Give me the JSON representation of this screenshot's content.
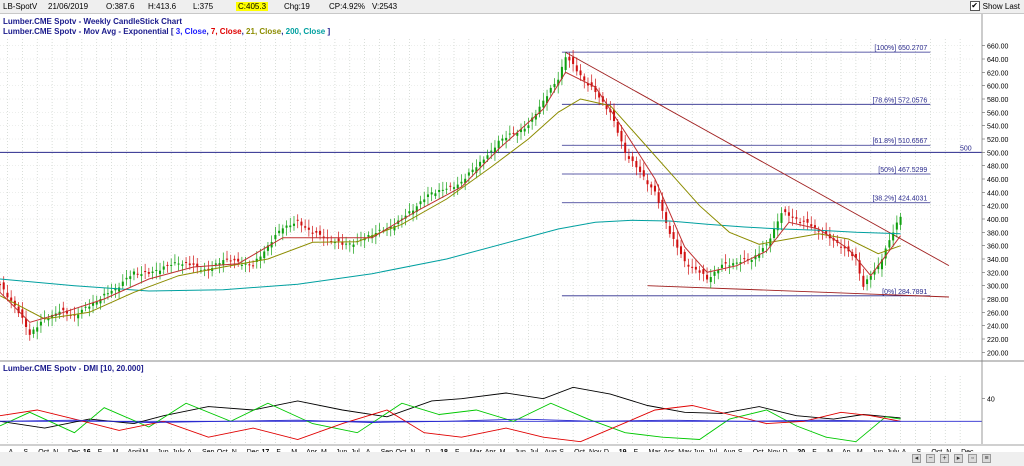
{
  "header": {
    "symbol": "LB-SpotV",
    "date": "21/06/2019",
    "open": "O:387.6",
    "high": "H:413.6",
    "low": "L:375",
    "close": "C:405.3",
    "change": "Chg:19",
    "change_pct": "CP:4.92%",
    "volume": "V:2543",
    "show_last_label": "Show Last",
    "show_last_checked": "✔"
  },
  "chart_data": [
    {
      "type": "candlestick",
      "title": "Lumber.CME Spotv - Weekly CandleStick Chart",
      "indicator_label": "Lumber.CME Spotv - Mov Avg - Exponential [",
      "ma_params": [
        {
          "text": "3, Close",
          "color": "#1a1aff"
        },
        {
          "text": "7, Close",
          "color": "#e00000"
        },
        {
          "text": "21, Close",
          "color": "#8c8c00"
        },
        {
          "text": "200, Close",
          "color": "#00a0a0"
        }
      ],
      "ma_label_end": "]",
      "ylim": [
        190,
        670
      ],
      "y_ticks": [
        200,
        220,
        240,
        260,
        280,
        300,
        320,
        340,
        360,
        380,
        400,
        420,
        440,
        460,
        480,
        500,
        520,
        540,
        560,
        580,
        600,
        620,
        640,
        660
      ],
      "price_path": [
        [
          0,
          300
        ],
        [
          4,
          270
        ],
        [
          8,
          228
        ],
        [
          12,
          250
        ],
        [
          16,
          262
        ],
        [
          20,
          255
        ],
        [
          24,
          270
        ],
        [
          28,
          285
        ],
        [
          32,
          300
        ],
        [
          36,
          320
        ],
        [
          40,
          318
        ],
        [
          44,
          328
        ],
        [
          48,
          335
        ],
        [
          52,
          330
        ],
        [
          56,
          322
        ],
        [
          60,
          340
        ],
        [
          64,
          335
        ],
        [
          68,
          330
        ],
        [
          72,
          360
        ],
        [
          76,
          388
        ],
        [
          80,
          395
        ],
        [
          84,
          380
        ],
        [
          88,
          370
        ],
        [
          92,
          362
        ],
        [
          96,
          365
        ],
        [
          100,
          378
        ],
        [
          104,
          385
        ],
        [
          108,
          400
        ],
        [
          112,
          420
        ],
        [
          116,
          440
        ],
        [
          120,
          445
        ],
        [
          124,
          455
        ],
        [
          128,
          480
        ],
        [
          132,
          500
        ],
        [
          134,
          518
        ],
        [
          138,
          528
        ],
        [
          142,
          540
        ],
        [
          146,
          578
        ],
        [
          150,
          610
        ],
        [
          152,
          645
        ],
        [
          156,
          615
        ],
        [
          160,
          590
        ],
        [
          164,
          560
        ],
        [
          168,
          500
        ],
        [
          172,
          470
        ],
        [
          176,
          440
        ],
        [
          180,
          380
        ],
        [
          184,
          335
        ],
        [
          188,
          320
        ],
        [
          190,
          310
        ],
        [
          194,
          330
        ],
        [
          198,
          335
        ],
        [
          202,
          340
        ],
        [
          206,
          360
        ],
        [
          210,
          410
        ],
        [
          214,
          400
        ],
        [
          218,
          390
        ],
        [
          222,
          375
        ],
        [
          226,
          360
        ],
        [
          230,
          340
        ],
        [
          232,
          300
        ],
        [
          236,
          330
        ],
        [
          240,
          380
        ],
        [
          242,
          405
        ]
      ],
      "ema_200_path": [
        [
          0,
          310
        ],
        [
          20,
          300
        ],
        [
          40,
          292
        ],
        [
          60,
          294
        ],
        [
          80,
          302
        ],
        [
          100,
          318
        ],
        [
          120,
          340
        ],
        [
          140,
          370
        ],
        [
          150,
          385
        ],
        [
          160,
          395
        ],
        [
          170,
          398
        ],
        [
          180,
          397
        ],
        [
          190,
          392
        ],
        [
          200,
          388
        ],
        [
          210,
          385
        ],
        [
          220,
          383
        ],
        [
          230,
          380
        ],
        [
          242,
          378
        ]
      ],
      "ema_21_path": [
        [
          0,
          285
        ],
        [
          12,
          250
        ],
        [
          24,
          260
        ],
        [
          36,
          290
        ],
        [
          48,
          315
        ],
        [
          60,
          328
        ],
        [
          72,
          340
        ],
        [
          84,
          365
        ],
        [
          96,
          366
        ],
        [
          108,
          392
        ],
        [
          120,
          430
        ],
        [
          132,
          478
        ],
        [
          142,
          520
        ],
        [
          150,
          560
        ],
        [
          156,
          580
        ],
        [
          164,
          570
        ],
        [
          172,
          520
        ],
        [
          180,
          470
        ],
        [
          188,
          420
        ],
        [
          196,
          380
        ],
        [
          204,
          362
        ],
        [
          212,
          370
        ],
        [
          220,
          378
        ],
        [
          228,
          370
        ],
        [
          236,
          348
        ],
        [
          242,
          360
        ]
      ],
      "ema_7_path": [
        [
          0,
          290
        ],
        [
          8,
          245
        ],
        [
          16,
          258
        ],
        [
          28,
          280
        ],
        [
          40,
          310
        ],
        [
          52,
          328
        ],
        [
          64,
          333
        ],
        [
          76,
          372
        ],
        [
          88,
          372
        ],
        [
          100,
          372
        ],
        [
          112,
          412
        ],
        [
          124,
          448
        ],
        [
          134,
          505
        ],
        [
          146,
          565
        ],
        [
          152,
          620
        ],
        [
          160,
          598
        ],
        [
          168,
          530
        ],
        [
          176,
          460
        ],
        [
          184,
          358
        ],
        [
          190,
          320
        ],
        [
          198,
          330
        ],
        [
          206,
          352
        ],
        [
          212,
          395
        ],
        [
          220,
          385
        ],
        [
          228,
          355
        ],
        [
          234,
          315
        ],
        [
          242,
          375
        ]
      ],
      "fib_levels": [
        {
          "label": "[100%] 650.2707",
          "value": 650.2707
        },
        {
          "label": "[78.6%] 572.0576",
          "value": 572.0576
        },
        {
          "label": "[61.8%] 510.6567",
          "value": 510.6567
        },
        {
          "label": "[50%] 467.5299",
          "value": 467.5299
        },
        {
          "label": "[38.2%] 424.4031",
          "value": 424.4031
        },
        {
          "label": "[0%] 284.7891",
          "value": 284.7891
        }
      ],
      "horizontal_line": {
        "label": "500",
        "value": 500
      }
    },
    {
      "type": "line",
      "title": "Lumber.CME Spotv - DMI [10, 20.000]",
      "ylim": [
        0,
        60
      ],
      "y_ticks": [
        40
      ],
      "threshold": 20,
      "series": [
        {
          "color": "#000000",
          "values": [
            [
              0,
              20
            ],
            [
              12,
              14
            ],
            [
              24,
              22
            ],
            [
              36,
              18
            ],
            [
              44,
              25
            ],
            [
              56,
              33
            ],
            [
              68,
              30
            ],
            [
              80,
              38
            ],
            [
              92,
              30
            ],
            [
              104,
              24
            ],
            [
              116,
              38
            ],
            [
              124,
              40
            ],
            [
              136,
              45
            ],
            [
              146,
              40
            ],
            [
              154,
              50
            ],
            [
              164,
              44
            ],
            [
              174,
              34
            ],
            [
              184,
              28
            ],
            [
              194,
              27
            ],
            [
              204,
              33
            ],
            [
              214,
              25
            ],
            [
              224,
              22
            ],
            [
              232,
              26
            ],
            [
              242,
              23
            ]
          ]
        },
        {
          "color": "#00c800",
          "values": [
            [
              0,
              16
            ],
            [
              8,
              28
            ],
            [
              20,
              10
            ],
            [
              28,
              32
            ],
            [
              40,
              15
            ],
            [
              50,
              36
            ],
            [
              62,
              20
            ],
            [
              72,
              36
            ],
            [
              84,
              18
            ],
            [
              96,
              10
            ],
            [
              108,
              36
            ],
            [
              118,
              26
            ],
            [
              128,
              30
            ],
            [
              138,
              20
            ],
            [
              148,
              36
            ],
            [
              158,
              22
            ],
            [
              168,
              10
            ],
            [
              178,
              6
            ],
            [
              188,
              4
            ],
            [
              196,
              22
            ],
            [
              206,
              30
            ],
            [
              214,
              16
            ],
            [
              222,
              6
            ],
            [
              230,
              2
            ],
            [
              238,
              24
            ],
            [
              242,
              22
            ]
          ]
        },
        {
          "color": "#e00000",
          "values": [
            [
              0,
              25
            ],
            [
              10,
              30
            ],
            [
              20,
              22
            ],
            [
              32,
              12
            ],
            [
              44,
              20
            ],
            [
              56,
              6
            ],
            [
              68,
              14
            ],
            [
              80,
              4
            ],
            [
              92,
              18
            ],
            [
              104,
              30
            ],
            [
              114,
              10
            ],
            [
              124,
              6
            ],
            [
              136,
              14
            ],
            [
              146,
              6
            ],
            [
              156,
              2
            ],
            [
              166,
              16
            ],
            [
              176,
              30
            ],
            [
              186,
              34
            ],
            [
              196,
              26
            ],
            [
              206,
              18
            ],
            [
              216,
              20
            ],
            [
              226,
              28
            ],
            [
              234,
              25
            ],
            [
              242,
              20
            ]
          ]
        },
        {
          "color": "#2a2ad0",
          "values": [
            [
              0,
              20
            ],
            [
              20,
              21
            ],
            [
              40,
              19
            ],
            [
              60,
              20
            ],
            [
              80,
              21
            ],
            [
              100,
              19
            ],
            [
              120,
              20
            ],
            [
              140,
              22
            ],
            [
              160,
              20
            ],
            [
              180,
              21
            ],
            [
              200,
              20
            ],
            [
              220,
              21
            ],
            [
              242,
              20
            ]
          ]
        }
      ]
    }
  ],
  "x_axis": [
    {
      "t": 2,
      "label": "A"
    },
    {
      "t": 6,
      "label": "S"
    },
    {
      "t": 10,
      "label": "Oct"
    },
    {
      "t": 14,
      "label": "N"
    },
    {
      "t": 18,
      "label": "Dec"
    },
    {
      "t": 22,
      "label": "16",
      "bold": true
    },
    {
      "t": 26,
      "label": "F"
    },
    {
      "t": 30,
      "label": "M"
    },
    {
      "t": 34,
      "label": "April"
    },
    {
      "t": 38,
      "label": "M"
    },
    {
      "t": 42,
      "label": "Jun"
    },
    {
      "t": 46,
      "label": "July"
    },
    {
      "t": 50,
      "label": "A"
    },
    {
      "t": 54,
      "label": "Sep"
    },
    {
      "t": 58,
      "label": "Oct"
    },
    {
      "t": 62,
      "label": "N"
    },
    {
      "t": 66,
      "label": "Dec"
    },
    {
      "t": 70,
      "label": "17",
      "bold": true
    },
    {
      "t": 74,
      "label": "F"
    },
    {
      "t": 78,
      "label": "M"
    },
    {
      "t": 82,
      "label": "Apr"
    },
    {
      "t": 86,
      "label": "M"
    },
    {
      "t": 90,
      "label": "Jun"
    },
    {
      "t": 94,
      "label": "Jul"
    },
    {
      "t": 98,
      "label": "A"
    },
    {
      "t": 102,
      "label": "Sep"
    },
    {
      "t": 106,
      "label": "Oct"
    },
    {
      "t": 110,
      "label": "N"
    },
    {
      "t": 114,
      "label": "D"
    },
    {
      "t": 118,
      "label": "18",
      "bold": true
    },
    {
      "t": 122,
      "label": "F"
    },
    {
      "t": 126,
      "label": "Mar"
    },
    {
      "t": 130,
      "label": "Apr"
    },
    {
      "t": 134,
      "label": "M"
    },
    {
      "t": 138,
      "label": "Jun"
    },
    {
      "t": 142,
      "label": "Jul"
    },
    {
      "t": 146,
      "label": "Aug"
    },
    {
      "t": 150,
      "label": "S"
    },
    {
      "t": 154,
      "label": "Oct"
    },
    {
      "t": 158,
      "label": "Nov"
    },
    {
      "t": 162,
      "label": "D"
    },
    {
      "t": 166,
      "label": "19",
      "bold": true
    },
    {
      "t": 170,
      "label": "F"
    },
    {
      "t": 174,
      "label": "Mar"
    },
    {
      "t": 178,
      "label": "Apr"
    },
    {
      "t": 182,
      "label": "May"
    },
    {
      "t": 186,
      "label": "Jun"
    },
    {
      "t": 190,
      "label": "Jul"
    },
    {
      "t": 194,
      "label": "Aug"
    },
    {
      "t": 198,
      "label": "S"
    },
    {
      "t": 202,
      "label": "Oct"
    },
    {
      "t": 206,
      "label": "Nov"
    },
    {
      "t": 210,
      "label": "D"
    },
    {
      "t": 214,
      "label": "20",
      "bold": true
    },
    {
      "t": 218,
      "label": "F"
    },
    {
      "t": 222,
      "label": "M"
    },
    {
      "t": 226,
      "label": "Ap"
    },
    {
      "t": 230,
      "label": "M"
    },
    {
      "t": 234,
      "label": "Jun"
    },
    {
      "t": 238,
      "label": "July"
    },
    {
      "t": 242,
      "label": "A"
    },
    {
      "t": 246,
      "label": "S"
    },
    {
      "t": 250,
      "label": "Oct"
    },
    {
      "t": 254,
      "label": "N"
    },
    {
      "t": 258,
      "label": "Dec"
    }
  ]
}
